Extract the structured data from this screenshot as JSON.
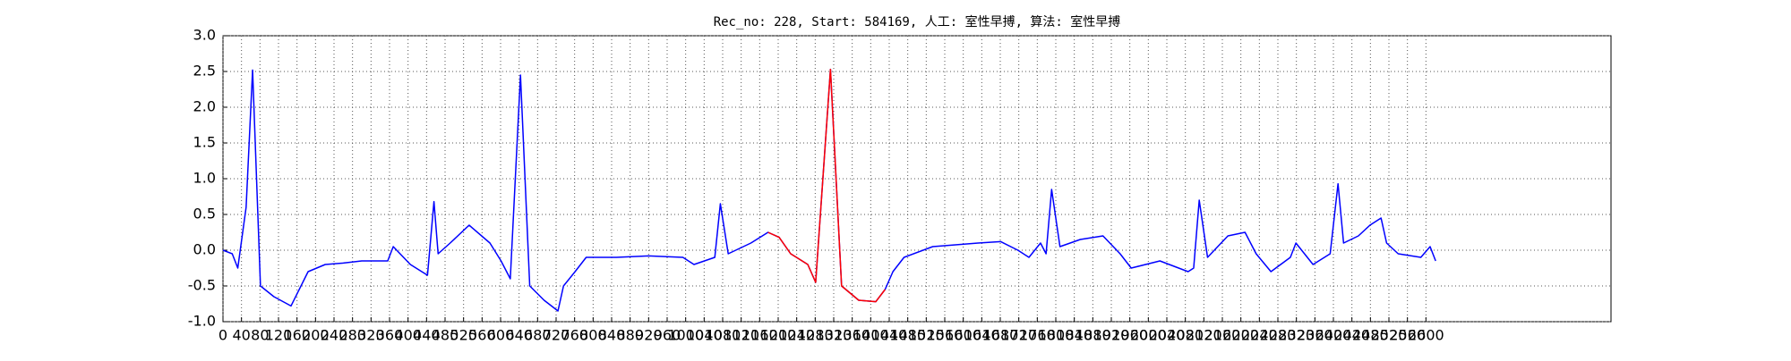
{
  "chart_data": {
    "type": "line",
    "title": "Rec_no: 228, Start: 584169, 人工: 室性早搏, 算法: 室性早搏",
    "grid": true,
    "xlim": [
      0,
      3000
    ],
    "ylim": [
      -1,
      3
    ],
    "xticks": [
      0,
      40,
      80,
      120,
      160,
      200,
      240,
      280,
      320,
      360,
      400,
      440,
      480,
      520,
      560,
      600,
      640,
      680,
      720,
      760,
      800,
      840,
      880,
      920,
      960,
      1000,
      1040,
      1080,
      1120,
      1160,
      1200,
      1240,
      1280,
      1320,
      1360,
      1400,
      1440,
      1480,
      1520,
      1560,
      1600,
      1640,
      1680,
      1720,
      1760,
      1800,
      1840,
      1880,
      1920,
      1960,
      2000,
      2040,
      2080,
      2120,
      2160,
      2200,
      2240,
      2280,
      2320,
      2360,
      2400,
      2440,
      2480,
      2520,
      2560,
      2600
    ],
    "yticks": [
      {
        "value": -1,
        "label": "-1.0"
      },
      -0.5,
      {
        "value": 0,
        "label": "0.0"
      },
      0.5,
      {
        "value": 1,
        "label": "1.0"
      },
      1.5,
      {
        "value": 2,
        "label": "2.0"
      },
      2.5,
      {
        "value": 3,
        "label": "3.0"
      }
    ],
    "series": [
      {
        "color": "#0000ff",
        "x": [
          0,
          20,
          32,
          50,
          64,
          81,
          110,
          147,
          184,
          221,
          260,
          300,
          356,
          368,
          405,
          442,
          456,
          465,
          491,
          532,
          577,
          601,
          621,
          643,
          663,
          694,
          724,
          736,
          761,
          785,
          850,
          920,
          994,
          1018,
          1063,
          1075,
          1092,
          1141,
          1178,
          1202,
          1227,
          1264,
          1281,
          1313,
          1337,
          1374,
          1411,
          1431,
          1448,
          1472,
          1534,
          1632,
          1681,
          1718,
          1742,
          1767,
          1779,
          1791,
          1809,
          1853,
          1902,
          1939,
          1963,
          2025,
          2086,
          2098,
          2110,
          2128,
          2172,
          2209,
          2233,
          2265,
          2307,
          2319,
          2356,
          2393,
          2410,
          2422,
          2454,
          2479,
          2503,
          2515,
          2540,
          2589,
          2609,
          2621
        ],
        "values": [
          0.0,
          -0.05,
          -0.25,
          0.6,
          2.52,
          -0.5,
          -0.65,
          -0.78,
          -0.3,
          -0.2,
          -0.18,
          -0.15,
          -0.15,
          0.05,
          -0.2,
          -0.35,
          0.68,
          -0.05,
          0.1,
          0.35,
          0.1,
          -0.15,
          -0.4,
          2.45,
          -0.5,
          -0.7,
          -0.85,
          -0.5,
          -0.3,
          -0.1,
          -0.1,
          -0.08,
          -0.1,
          -0.2,
          -0.1,
          0.65,
          -0.05,
          0.1,
          0.25,
          0.18,
          -0.05,
          -0.2,
          -0.45,
          2.53,
          -0.5,
          -0.7,
          -0.72,
          -0.55,
          -0.3,
          -0.1,
          0.05,
          0.1,
          0.12,
          0.0,
          -0.1,
          0.1,
          -0.05,
          0.85,
          0.05,
          0.15,
          0.2,
          -0.05,
          -0.25,
          -0.15,
          -0.3,
          -0.25,
          0.7,
          -0.1,
          0.2,
          0.25,
          -0.05,
          -0.3,
          -0.1,
          0.1,
          -0.2,
          -0.05,
          0.93,
          0.1,
          0.2,
          0.35,
          0.45,
          0.1,
          -0.05,
          -0.1,
          0.05,
          -0.15
        ]
      },
      {
        "color": "#ff0000",
        "x": [
          1178,
          1202,
          1227,
          1264,
          1281,
          1313,
          1337,
          1374,
          1411,
          1431
        ],
        "values": [
          0.25,
          0.18,
          -0.05,
          -0.2,
          -0.45,
          2.53,
          -0.5,
          -0.7,
          -0.72,
          -0.55
        ]
      }
    ]
  }
}
